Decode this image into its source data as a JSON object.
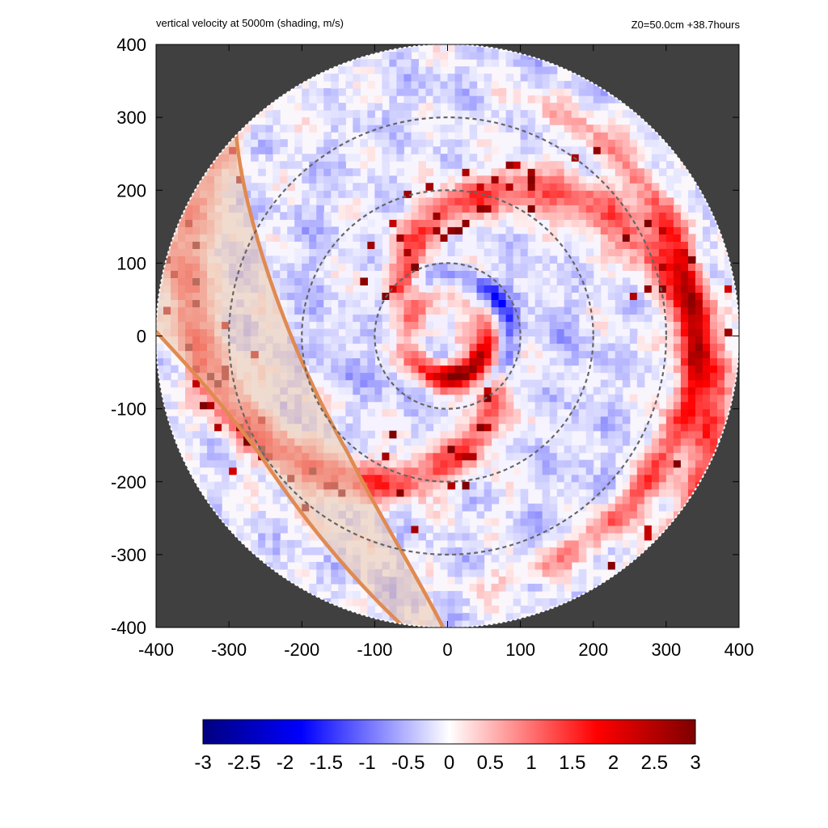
{
  "chart_data": {
    "type": "heatmap",
    "title": "vertical velocity at 5000m (shading, m/s)",
    "subtitle": "Z0=50.0cm  +38.7hours",
    "xlabel": "",
    "ylabel": "",
    "xlim": [
      -400,
      400
    ],
    "ylim": [
      -400,
      400
    ],
    "x_ticks": [
      "-400",
      "-300",
      "-200",
      "-100",
      "0",
      "100",
      "200",
      "300",
      "400"
    ],
    "y_ticks": [
      "400",
      "300",
      "200",
      "100",
      "0",
      "-100",
      "-200",
      "-300",
      "-400"
    ],
    "domain_radius": 400,
    "range_rings": [
      100,
      200,
      300
    ],
    "colorbar": {
      "min": -3,
      "max": 3,
      "ticks": [
        "-3",
        "-2.5",
        "-2",
        "-1.5",
        "-1",
        "-0.5",
        "0",
        "0.5",
        "1",
        "1.5",
        "2",
        "2.5",
        "3"
      ],
      "colors": [
        "#00007f",
        "#0000ff",
        "#ffffff",
        "#ff0000",
        "#7f0000"
      ]
    },
    "colors": {
      "outside_domain": "#404040",
      "land_outline": "#e08a50",
      "land_fill": "#e8c4aa",
      "ring_line": "#666666"
    }
  }
}
